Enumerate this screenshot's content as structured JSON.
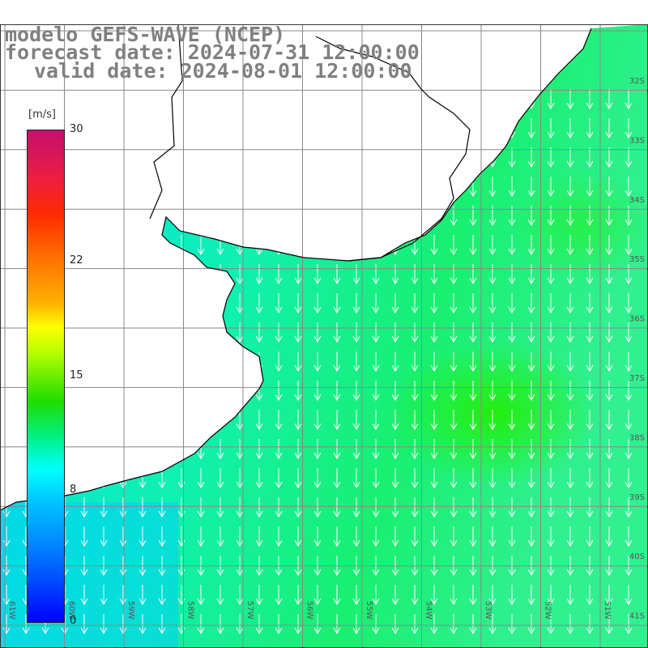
{
  "title": {
    "line1": "modelo GEFS-WAVE (NCEP)",
    "line2": "forecast date: 2024-07-31 12:00:00",
    "line3": "valid date: 2024-08-01 12:00:00"
  },
  "colorbar": {
    "units": "[m/s]",
    "min": 0,
    "max": 30,
    "ticks": [
      {
        "value": 30,
        "label": "30"
      },
      {
        "value": 22,
        "label": "22"
      },
      {
        "value": 15,
        "label": "15"
      },
      {
        "value": 8,
        "label": "8"
      },
      {
        "value": 0,
        "label": "0"
      }
    ]
  },
  "map": {
    "field": "wind speed",
    "lat_labels": [
      "32S",
      "33S",
      "34S",
      "35S",
      "36S",
      "37S",
      "38S",
      "39S",
      "40S",
      "41S"
    ],
    "lon_labels": [
      "61W",
      "60W",
      "59W",
      "58W",
      "57W",
      "56W",
      "55W",
      "54W",
      "53W",
      "52W",
      "51W"
    ],
    "colors": {
      "ocean_low": "#00d4ff",
      "ocean_high": "#20ee30",
      "land": "#ffffff",
      "coast": "#000000",
      "arrows": "#ffffff"
    }
  }
}
